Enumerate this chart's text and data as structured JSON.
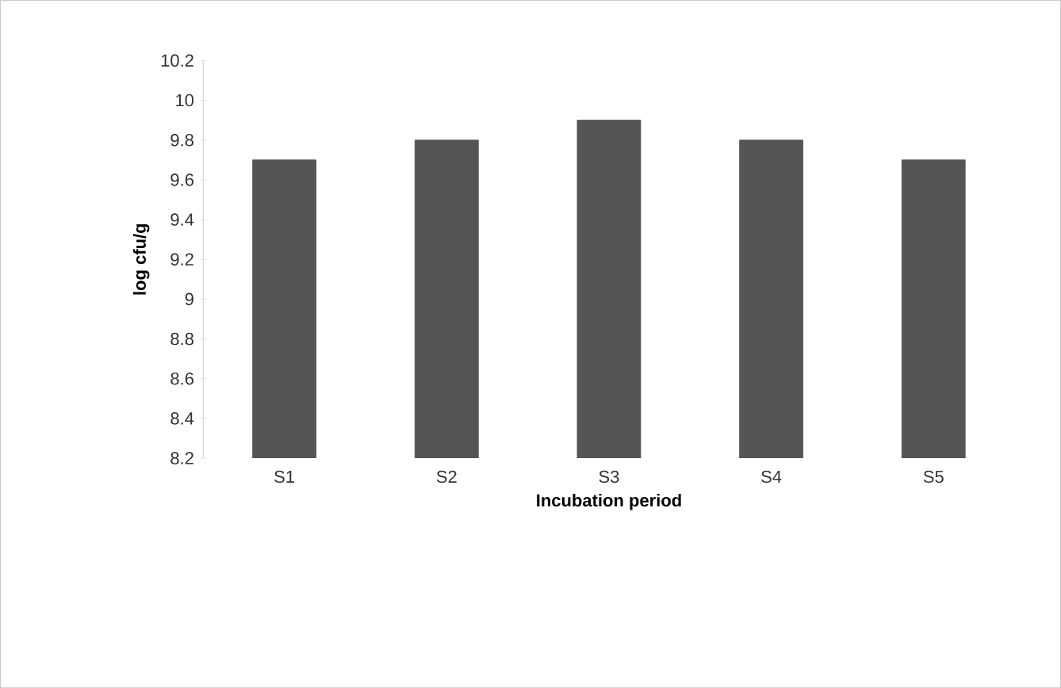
{
  "chart_data": {
    "type": "bar",
    "xlabel": "Incubation period",
    "ylabel": "log cfu/g",
    "categories": [
      "S1",
      "S2",
      "S3",
      "S4",
      "S5"
    ],
    "values": [
      9.7,
      9.8,
      9.9,
      9.8,
      9.7
    ],
    "color": "#555555",
    "ylim": [
      8.2,
      10.2
    ],
    "yticks": [
      8.2,
      8.4,
      8.6,
      8.8,
      9,
      9.2,
      9.4,
      9.6,
      9.8,
      10,
      10.2
    ],
    "grid": false
  }
}
